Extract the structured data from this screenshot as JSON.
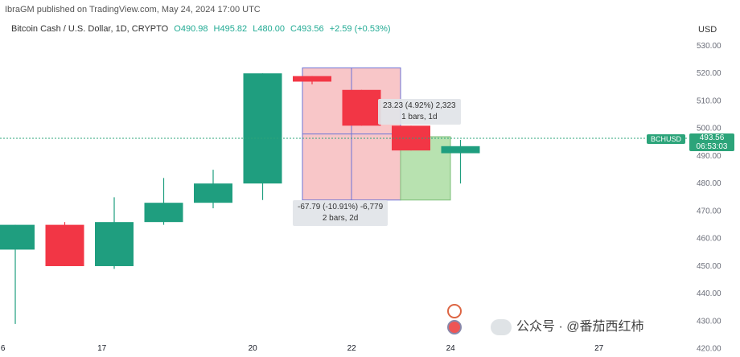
{
  "header": {
    "author_line": "IbraGM published on TradingView.com, May 24, 2024 17:00 UTC",
    "symbol": "Bitcoin Cash / U.S. Dollar, 1D, CRYPTO",
    "open": "O490.98",
    "high": "H495.82",
    "low": "L480.00",
    "close": "C493.56",
    "change": "+2.59 (+0.53%)",
    "currency": "USD"
  },
  "price_badge": {
    "price": "493.56",
    "countdown": "06:53:03"
  },
  "mini_badge": "BCHUSD",
  "annotations": {
    "up_move": {
      "line1": "23.23 (4.92%) 2,323",
      "line2": "1 bars, 1d"
    },
    "down_move": {
      "line1": "-67.79 (-10.91%) -6,779",
      "line2": "2 bars, 2d"
    }
  },
  "watermark": "公众号 · @番茄西红柿",
  "colors": {
    "up": "#1f9e7f",
    "down": "#f23645",
    "range_fill": "#f8c6c8",
    "range_border": "#6b73d6",
    "green_range": "#b8e2b0"
  },
  "chart_data": {
    "type": "candlestick",
    "x_tick_labels": [
      "6",
      "17",
      "20",
      "22",
      "24",
      "27"
    ],
    "y_tick_labels": [
      "530.00",
      "520.00",
      "510.00",
      "500.00",
      "490.00",
      "480.00",
      "470.00",
      "460.00",
      "450.00",
      "440.00",
      "430.00",
      "420.00"
    ],
    "ylim": [
      417,
      537
    ],
    "candles": [
      {
        "open": 456,
        "high": 465,
        "low": 429,
        "close": 465
      },
      {
        "open": 465,
        "high": 466,
        "low": 450,
        "close": 450
      },
      {
        "open": 450,
        "high": 475,
        "low": 449,
        "close": 466
      },
      {
        "open": 466,
        "high": 482,
        "low": 465,
        "close": 473
      },
      {
        "open": 473,
        "high": 485,
        "low": 471,
        "close": 480
      },
      {
        "open": 480,
        "high": 520,
        "low": 474,
        "close": 520
      },
      {
        "open": 519,
        "high": 519,
        "low": 516,
        "close": 517
      },
      {
        "open": 514,
        "high": 514,
        "low": 501,
        "close": 501
      },
      {
        "open": 501,
        "high": 501,
        "low": 492,
        "close": 492
      },
      {
        "open": 491,
        "high": 495.82,
        "low": 480,
        "close": 493.56
      }
    ]
  }
}
